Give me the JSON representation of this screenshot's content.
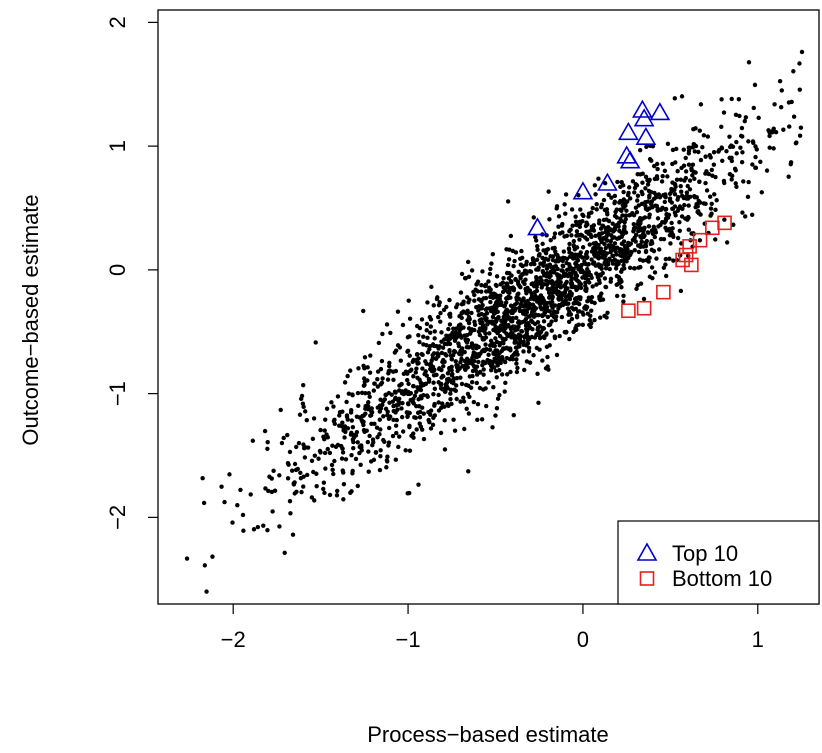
{
  "chart_data": {
    "type": "scatter",
    "title": "",
    "xlabel": "Process−based estimate",
    "ylabel": "Outcome−based estimate",
    "xlim": [
      -2.43,
      1.35
    ],
    "ylim": [
      -2.7,
      2.1
    ],
    "x_ticks": [
      -2,
      -1,
      0,
      1
    ],
    "x_tick_labels": [
      "−2",
      "−1",
      "0",
      "1"
    ],
    "y_ticks": [
      -2,
      -1,
      0,
      1,
      2
    ],
    "y_tick_labels": [
      "−2",
      "−1",
      "0",
      "1",
      "2"
    ],
    "grid": false,
    "legend_position": "bottom-right",
    "series": [
      {
        "name": "",
        "marker": "dot",
        "color": "#000000",
        "description_generation": {
          "n": 2400,
          "slope": 0.98,
          "intercept": 0.02,
          "noise_sd": 0.25,
          "x_range": [
            -2.3,
            1.3
          ],
          "clip_y": [
            -2.6,
            2.0
          ]
        }
      },
      {
        "name": "Top 10",
        "marker": "triangle",
        "color": "#0000CC",
        "points": [
          [
            -0.26,
            0.34
          ],
          [
            0.0,
            0.63
          ],
          [
            0.14,
            0.7
          ],
          [
            0.25,
            0.92
          ],
          [
            0.27,
            0.88
          ],
          [
            0.26,
            1.11
          ],
          [
            0.36,
            1.07
          ],
          [
            0.35,
            1.22
          ],
          [
            0.34,
            1.29
          ],
          [
            0.44,
            1.27
          ]
        ]
      },
      {
        "name": "Bottom 10",
        "marker": "square",
        "color": "#E6201C",
        "points": [
          [
            0.26,
            -0.33
          ],
          [
            0.35,
            -0.31
          ],
          [
            0.46,
            -0.18
          ],
          [
            0.57,
            0.08
          ],
          [
            0.59,
            0.12
          ],
          [
            0.61,
            0.19
          ],
          [
            0.62,
            0.04
          ],
          [
            0.67,
            0.24
          ],
          [
            0.74,
            0.34
          ],
          [
            0.81,
            0.38
          ]
        ]
      }
    ]
  },
  "legend": {
    "items": [
      {
        "label": "Top 10",
        "color": "#0000CC",
        "marker": "triangle"
      },
      {
        "label": "Bottom 10",
        "color": "#E6201C",
        "marker": "square"
      }
    ]
  }
}
